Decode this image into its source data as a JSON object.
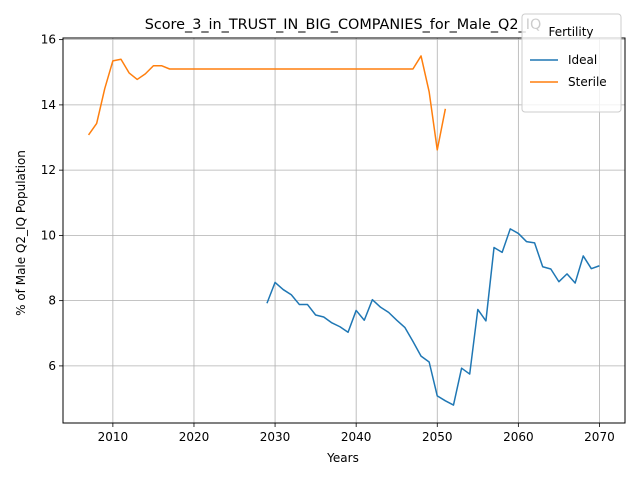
{
  "chart_data": {
    "type": "line",
    "title": "Score_3_in_TRUST_IN_BIG_COMPANIES_for_Male_Q2_IQ",
    "xlabel": "Years",
    "ylabel": "% of Male Q2_IQ Population",
    "xlim": [
      2003.85,
      2073.15
    ],
    "ylim": [
      4.25,
      16.05
    ],
    "xticks": [
      2010,
      2020,
      2030,
      2040,
      2050,
      2060,
      2070
    ],
    "yticks": [
      6,
      8,
      10,
      12,
      14,
      16
    ],
    "grid": true,
    "legend": {
      "title": "Fertility",
      "position": "top-right"
    },
    "series": [
      {
        "name": "Ideal",
        "color": "#1f77b4",
        "x": [
          2029,
          2030,
          2031,
          2032,
          2033,
          2034,
          2035,
          2036,
          2037,
          2038,
          2039,
          2040,
          2041,
          2042,
          2043,
          2044,
          2045,
          2046,
          2047,
          2048,
          2049,
          2050,
          2051,
          2052,
          2053,
          2054,
          2055,
          2056,
          2057,
          2058,
          2059,
          2060,
          2061,
          2062,
          2063,
          2064,
          2065,
          2066,
          2067,
          2068,
          2069,
          2070
        ],
        "y": [
          7.92,
          8.56,
          8.34,
          8.18,
          7.88,
          7.88,
          7.56,
          7.5,
          7.32,
          7.2,
          7.03,
          7.7,
          7.4,
          8.03,
          7.8,
          7.64,
          7.4,
          7.18,
          6.75,
          6.3,
          6.12,
          5.08,
          4.93,
          4.8,
          5.93,
          5.75,
          7.73,
          7.38,
          9.63,
          9.48,
          10.2,
          10.06,
          9.81,
          9.77,
          9.04,
          8.97,
          8.58,
          8.82,
          8.54,
          9.37,
          8.98,
          9.07
        ]
      },
      {
        "name": "Sterile",
        "color": "#ff7f0e",
        "x": [
          2007,
          2008,
          2009,
          2010,
          2011,
          2012,
          2013,
          2014,
          2015,
          2016,
          2017,
          2018,
          2019,
          2020,
          2021,
          2022,
          2023,
          2024,
          2025,
          2026,
          2027,
          2028,
          2029,
          2030,
          2031,
          2032,
          2033,
          2034,
          2035,
          2036,
          2037,
          2038,
          2039,
          2040,
          2041,
          2042,
          2043,
          2044,
          2045,
          2046,
          2047,
          2048,
          2049,
          2050,
          2051
        ],
        "y": [
          13.08,
          13.43,
          14.5,
          15.35,
          15.4,
          14.98,
          14.78,
          14.95,
          15.2,
          15.2,
          15.1,
          15.1,
          15.1,
          15.1,
          15.1,
          15.1,
          15.1,
          15.1,
          15.1,
          15.1,
          15.1,
          15.1,
          15.1,
          15.1,
          15.1,
          15.1,
          15.1,
          15.1,
          15.1,
          15.1,
          15.1,
          15.1,
          15.1,
          15.1,
          15.1,
          15.1,
          15.1,
          15.1,
          15.1,
          15.1,
          15.1,
          15.5,
          14.4,
          12.62,
          13.88
        ]
      }
    ]
  }
}
